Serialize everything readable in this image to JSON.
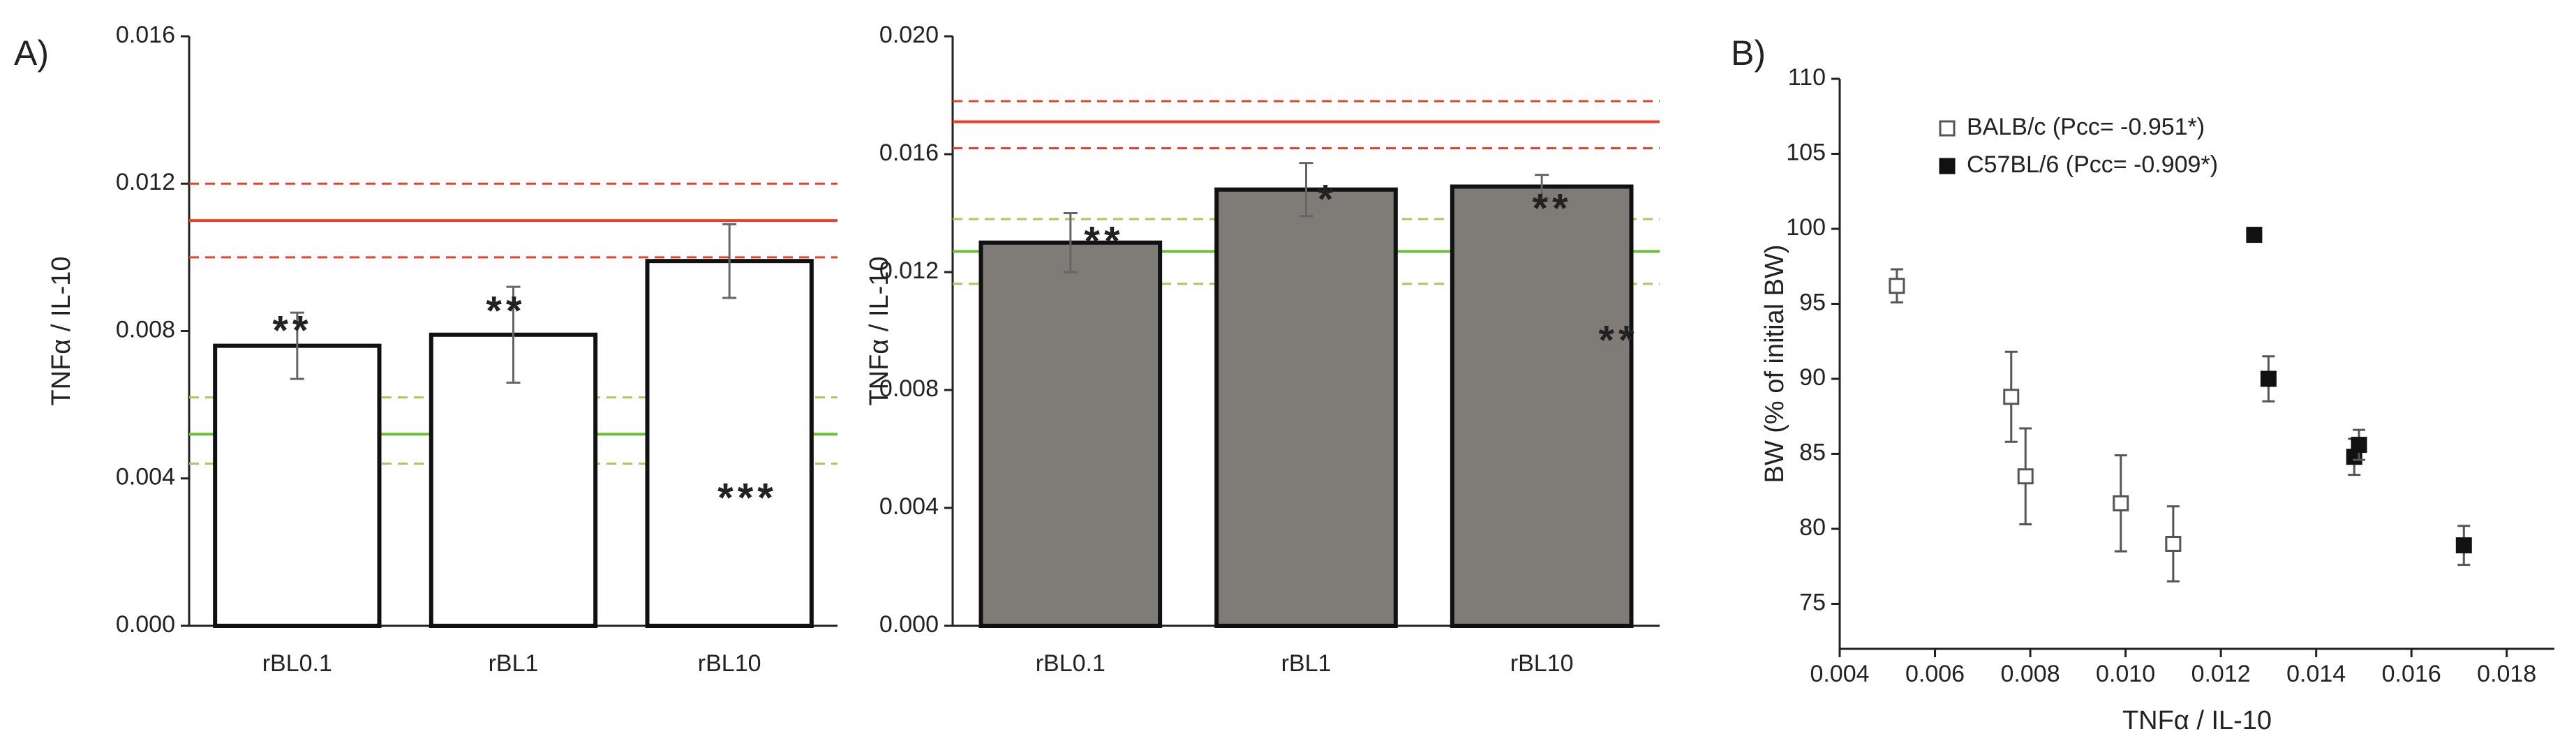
{
  "chart_data": [
    {
      "type": "bar",
      "panel_label": "A)",
      "ylabel": "TNFα / IL-10",
      "categories": [
        "rBL0.1",
        "rBL1",
        "rBL10"
      ],
      "values": [
        0.0076,
        0.0079,
        0.0099
      ],
      "errors": [
        0.0009,
        0.0013,
        0.001
      ],
      "color": "#ffffff",
      "ylim": [
        0,
        0.016
      ],
      "yticks": [
        {
          "value": 0,
          "label": "0.000"
        },
        {
          "value": 0.004,
          "label": "0.004"
        },
        {
          "value": 0.008,
          "label": "0.008"
        },
        {
          "value": 0.012,
          "label": "0.012"
        },
        {
          "value": 0.016,
          "label": "0.016"
        }
      ],
      "ref_lines": [
        {
          "value": 0.011,
          "color": "#e8402a",
          "dashed": false
        },
        {
          "value": 0.01,
          "color": "#e8402a",
          "dashed": true
        },
        {
          "value": 0.012,
          "color": "#e8402a",
          "dashed": true
        },
        {
          "value": 0.0052,
          "color": "#6cbf3c",
          "dashed": false
        },
        {
          "value": 0.0044,
          "color": "#a5cc5a",
          "dashed": true
        },
        {
          "value": 0.0062,
          "color": "#a5cc5a",
          "dashed": true
        }
      ],
      "annotations": [
        "**",
        "**",
        "***"
      ]
    },
    {
      "type": "bar",
      "ylabel": "TNFα / IL-10",
      "categories": [
        "rBL0.1",
        "rBL1",
        "rBL10"
      ],
      "values": [
        0.013,
        0.0148,
        0.0149
      ],
      "errors": [
        0.001,
        0.0009,
        0.0004
      ],
      "color": "#7f7b77",
      "ylim": [
        0,
        0.02
      ],
      "yticks": [
        {
          "value": 0,
          "label": "0.000"
        },
        {
          "value": 0.004,
          "label": "0.004"
        },
        {
          "value": 0.008,
          "label": "0.008"
        },
        {
          "value": 0.012,
          "label": "0.012"
        },
        {
          "value": 0.016,
          "label": "0.016"
        },
        {
          "value": 0.02,
          "label": "0.020"
        }
      ],
      "ref_lines": [
        {
          "value": 0.0171,
          "color": "#e8402a",
          "dashed": false
        },
        {
          "value": 0.0162,
          "color": "#e8402a",
          "dashed": true
        },
        {
          "value": 0.0178,
          "color": "#e8402a",
          "dashed": true
        },
        {
          "value": 0.0127,
          "color": "#6cbf3c",
          "dashed": false
        },
        {
          "value": 0.0116,
          "color": "#a5cc5a",
          "dashed": true
        },
        {
          "value": 0.0138,
          "color": "#a5cc5a",
          "dashed": true
        }
      ],
      "annotations": [
        "**",
        "*",
        "**",
        "**"
      ]
    },
    {
      "type": "scatter",
      "panel_label": "B)",
      "xlabel": "TNFα / IL-10",
      "ylabel": "BW (% of initial BW)",
      "xlim": [
        0.004,
        0.019
      ],
      "xticks": [
        {
          "value": 0.004,
          "label": "0.004"
        },
        {
          "value": 0.006,
          "label": "0.006"
        },
        {
          "value": 0.008,
          "label": "0.008"
        },
        {
          "value": 0.01,
          "label": "0.010"
        },
        {
          "value": 0.012,
          "label": "0.012"
        },
        {
          "value": 0.014,
          "label": "0.014"
        },
        {
          "value": 0.016,
          "label": "0.016"
        },
        {
          "value": 0.018,
          "label": "0.018"
        }
      ],
      "ylim": [
        72,
        110
      ],
      "yticks": [
        75,
        80,
        85,
        90,
        95,
        100,
        105,
        110
      ],
      "legend": "upper left",
      "series": [
        {
          "name": "BALB/c (Pcc= -0.951*)",
          "marker": "open-square",
          "color": "#555555",
          "x": [
            0.0052,
            0.0076,
            0.0079,
            0.0099,
            0.011
          ],
          "values": [
            96.2,
            88.8,
            83.5,
            81.7,
            79
          ],
          "errors": [
            1.1,
            3,
            3.2,
            3.2,
            2.5
          ]
        },
        {
          "name": "C57BL/6 (Pcc= -0.909*)",
          "marker": "filled-square",
          "color": "#111111",
          "x": [
            0.0127,
            0.013,
            0.0148,
            0.0149,
            0.0171
          ],
          "values": [
            99.6,
            90,
            84.8,
            85.6,
            78.9
          ],
          "errors": [
            0.3,
            1.5,
            1.2,
            1,
            1.3
          ]
        }
      ]
    }
  ]
}
